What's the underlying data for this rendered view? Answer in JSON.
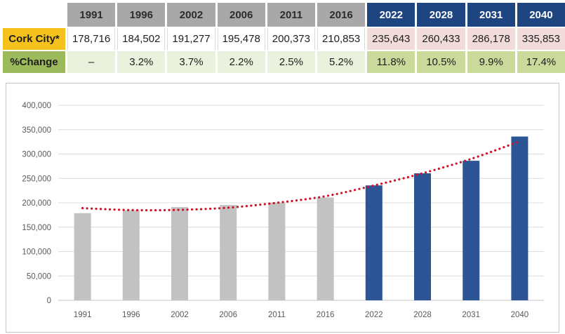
{
  "table": {
    "corner_label": "",
    "columns": [
      "1991",
      "1996",
      "2002",
      "2006",
      "2011",
      "2016",
      "2022",
      "2028",
      "2031",
      "2040"
    ],
    "rows": [
      {
        "label": "Cork City*",
        "values": [
          "178,716",
          "184,502",
          "191,277",
          "195,478",
          "200,373",
          "210,853",
          "235,643",
          "260,433",
          "286,178",
          "335,853"
        ]
      },
      {
        "label": "%Change",
        "values": [
          "–",
          "3.2%",
          "3.7%",
          "2.2%",
          "2.5%",
          "5.2%",
          "11.8%",
          "10.5%",
          "9.9%",
          "17.4%"
        ]
      }
    ]
  },
  "chart_data": {
    "type": "bar",
    "title": "",
    "xlabel": "",
    "ylabel": "",
    "categories": [
      "1991",
      "1996",
      "2002",
      "2006",
      "2011",
      "2016",
      "2022",
      "2028",
      "2031",
      "2040"
    ],
    "values": [
      178716,
      184502,
      191277,
      195478,
      200373,
      210853,
      235643,
      260433,
      286178,
      335853
    ],
    "projected": [
      false,
      false,
      false,
      false,
      false,
      false,
      true,
      true,
      true,
      true
    ],
    "trendline": {
      "style": "dotted",
      "color": "#CE1126",
      "values": [
        189000,
        185000,
        185500,
        190000,
        200000,
        213500,
        235500,
        260500,
        290000,
        326000
      ]
    },
    "ylim": [
      0,
      400000
    ],
    "ytick_step": 50000,
    "ytick_labels": [
      "0",
      "50,000",
      "100,000",
      "150,000",
      "200,000",
      "250,000",
      "300,000",
      "350,000",
      "400,000"
    ],
    "grid": true,
    "legend": false,
    "colors": {
      "historical_bar": "#C2C2C2",
      "projected_bar": "#2D5596",
      "gridline": "#DCDCDC",
      "axis_line": "#C4C4C4",
      "tick_text": "#595959"
    }
  },
  "colors": {
    "header_historical_bg": "#A8A8A8",
    "header_historical_text": "#2B2B2B",
    "header_projected_bg": "#1F4580",
    "header_projected_text": "#FFFFFF",
    "label_city_bg": "#F5C21D",
    "label_change_bg": "#9CBA5C",
    "value_projected_bg": "#F2DCDB",
    "pct_historical_bg": "#EAF1DC",
    "pct_projected_bg": "#C9DA9B"
  }
}
